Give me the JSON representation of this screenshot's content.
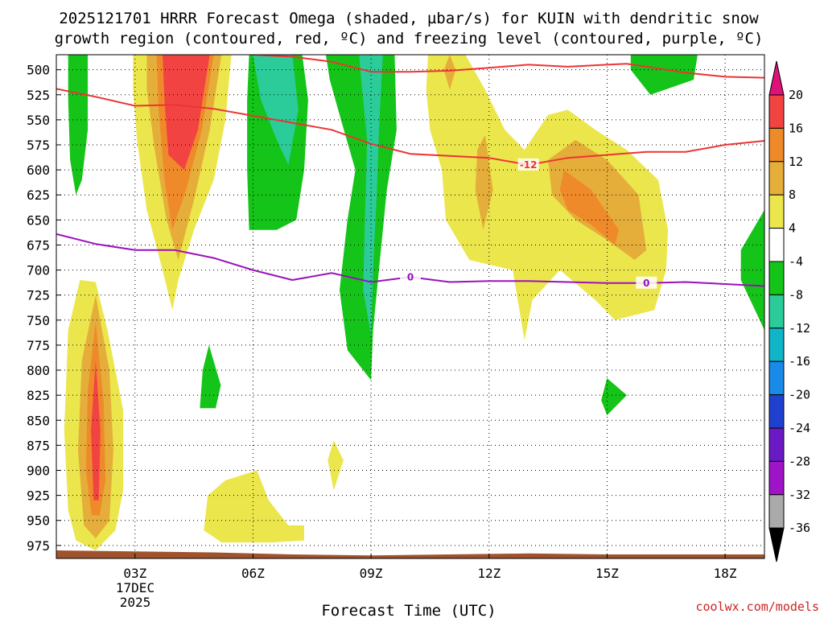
{
  "chart_data": {
    "type": "heatmap",
    "title_line1": "2025121701 HRRR Forecast Omega (shaded, µbar/s) for KUIN with dendritic snow",
    "title_line2": "growth region (contoured, red, ºC) and freezing level (contoured, purple, ºC)",
    "xlabel": "Forecast Time (UTC)",
    "credit": "coolwx.com/models",
    "x_range_hours": [
      1,
      19
    ],
    "x_ticks": [
      {
        "hour": 3,
        "label": "03Z"
      },
      {
        "hour": 6,
        "label": "06Z"
      },
      {
        "hour": 9,
        "label": "09Z"
      },
      {
        "hour": 12,
        "label": "12Z"
      },
      {
        "hour": 15,
        "label": "15Z"
      },
      {
        "hour": 18,
        "label": "18Z"
      }
    ],
    "date_label_line1": "17DEC",
    "date_label_line2": "2025",
    "y_range_mb": [
      485,
      988
    ],
    "y_ticks": [
      "500",
      "525",
      "550",
      "575",
      "600",
      "625",
      "650",
      "675",
      "700",
      "725",
      "750",
      "775",
      "800",
      "825",
      "850",
      "875",
      "900",
      "925",
      "950",
      "975"
    ],
    "grid": "dotted",
    "colorbar": {
      "labels": [
        "20",
        "16",
        "12",
        "8",
        "4",
        "-4",
        "-8",
        "-12",
        "-16",
        "-20",
        "-24",
        "-28",
        "-32",
        "-36"
      ],
      "colors": [
        "#dd1177",
        "#f24343",
        "#ef8a2a",
        "#e5ae3a",
        "#ece64d",
        "#ffffff",
        "#15c418",
        "#2ccc9a",
        "#11b5c8",
        "#1a8ae8",
        "#2040d0",
        "#6a1ac4",
        "#a014c8",
        "#aaaaaa",
        "#000000"
      ]
    },
    "contours": {
      "dgz_color": "#ee3333",
      "dgz_label": "-12",
      "dgz_upper": [
        [
          1,
          519
        ],
        [
          2,
          527
        ],
        [
          3,
          536
        ],
        [
          4,
          535
        ],
        [
          5,
          539
        ],
        [
          6,
          546
        ],
        [
          7,
          553
        ],
        [
          8,
          560
        ],
        [
          9,
          574
        ],
        [
          10,
          584
        ],
        [
          11,
          586
        ],
        [
          12,
          588
        ],
        [
          13,
          595
        ],
        [
          14,
          588
        ],
        [
          15,
          585
        ],
        [
          16,
          582
        ],
        [
          17,
          582
        ],
        [
          18,
          575
        ],
        [
          19,
          571
        ]
      ],
      "dgz_lower": [
        [
          6,
          485
        ],
        [
          7,
          487
        ],
        [
          8,
          492
        ],
        [
          9,
          502
        ],
        [
          10,
          502
        ],
        [
          11,
          501
        ],
        [
          12,
          498
        ],
        [
          13,
          495
        ],
        [
          14,
          497
        ],
        [
          15,
          495
        ],
        [
          15.5,
          494
        ],
        [
          16,
          497
        ],
        [
          17,
          503
        ],
        [
          18,
          507
        ],
        [
          19,
          508
        ]
      ],
      "freezing_color": "#9911bb",
      "freezing_label": "0",
      "freezing": [
        [
          1,
          664
        ],
        [
          2,
          674
        ],
        [
          3,
          680
        ],
        [
          4,
          680
        ],
        [
          5,
          688
        ],
        [
          6,
          700
        ],
        [
          7,
          710
        ],
        [
          8,
          703
        ],
        [
          9,
          712
        ],
        [
          10,
          707
        ],
        [
          11,
          712
        ],
        [
          12,
          711
        ],
        [
          13,
          711
        ],
        [
          14,
          712
        ],
        [
          15,
          713
        ],
        [
          16,
          713
        ],
        [
          17,
          712
        ],
        [
          18,
          714
        ],
        [
          19,
          716
        ]
      ]
    },
    "omega_regions": [
      {
        "value": 4,
        "points": [
          [
            2.0,
            712
          ],
          [
            2.3,
            760
          ],
          [
            2.7,
            840
          ],
          [
            2.7,
            920
          ],
          [
            2.5,
            960
          ],
          [
            2.0,
            980
          ],
          [
            1.5,
            970
          ],
          [
            1.3,
            940
          ],
          [
            1.2,
            860
          ],
          [
            1.3,
            760
          ],
          [
            1.6,
            710
          ]
        ]
      },
      {
        "value": 8,
        "points": [
          [
            2.0,
            725
          ],
          [
            2.35,
            800
          ],
          [
            2.45,
            880
          ],
          [
            2.35,
            950
          ],
          [
            2.0,
            968
          ],
          [
            1.7,
            955
          ],
          [
            1.55,
            880
          ],
          [
            1.65,
            790
          ]
        ]
      },
      {
        "value": 12,
        "points": [
          [
            2.0,
            752
          ],
          [
            2.2,
            830
          ],
          [
            2.25,
            910
          ],
          [
            2.1,
            945
          ],
          [
            1.9,
            945
          ],
          [
            1.75,
            900
          ],
          [
            1.8,
            820
          ]
        ]
      },
      {
        "value": 16,
        "points": [
          [
            2.0,
            790
          ],
          [
            2.12,
            860
          ],
          [
            2.08,
            930
          ],
          [
            1.95,
            930
          ],
          [
            1.88,
            860
          ]
        ]
      },
      {
        "value": -8,
        "points": [
          [
            1.3,
            485
          ],
          [
            1.8,
            485
          ],
          [
            1.8,
            560
          ],
          [
            1.65,
            610
          ],
          [
            1.5,
            625
          ],
          [
            1.35,
            590
          ],
          [
            1.3,
            530
          ]
        ]
      },
      {
        "value": 4,
        "points": [
          [
            2.95,
            485
          ],
          [
            5.45,
            485
          ],
          [
            5.3,
            550
          ],
          [
            5.0,
            610
          ],
          [
            4.5,
            660
          ],
          [
            4.1,
            710
          ],
          [
            3.95,
            740
          ],
          [
            3.7,
            700
          ],
          [
            3.3,
            640
          ],
          [
            3.05,
            570
          ],
          [
            2.95,
            520
          ]
        ]
      },
      {
        "value": 8,
        "points": [
          [
            3.3,
            485
          ],
          [
            5.2,
            485
          ],
          [
            4.9,
            560
          ],
          [
            4.5,
            630
          ],
          [
            4.1,
            690
          ],
          [
            3.8,
            650
          ],
          [
            3.5,
            580
          ],
          [
            3.3,
            520
          ]
        ]
      },
      {
        "value": 12,
        "points": [
          [
            3.55,
            485
          ],
          [
            5.0,
            485
          ],
          [
            4.7,
            560
          ],
          [
            4.3,
            620
          ],
          [
            3.95,
            660
          ],
          [
            3.75,
            610
          ],
          [
            3.6,
            540
          ]
        ]
      },
      {
        "value": 16,
        "points": [
          [
            3.7,
            485
          ],
          [
            4.9,
            485
          ],
          [
            4.6,
            560
          ],
          [
            4.25,
            600
          ],
          [
            3.85,
            585
          ],
          [
            3.75,
            530
          ]
        ]
      },
      {
        "value": -8,
        "points": [
          [
            5.9,
            485
          ],
          [
            7.25,
            485
          ],
          [
            7.4,
            530
          ],
          [
            7.3,
            600
          ],
          [
            7.1,
            650
          ],
          [
            6.6,
            660
          ],
          [
            5.9,
            660
          ],
          [
            5.85,
            600
          ],
          [
            5.85,
            530
          ]
        ]
      },
      {
        "value": -12,
        "points": [
          [
            6.0,
            485
          ],
          [
            7.0,
            485
          ],
          [
            7.15,
            540
          ],
          [
            6.9,
            595
          ],
          [
            6.6,
            570
          ],
          [
            6.2,
            530
          ]
        ]
      },
      {
        "value": -8,
        "points": [
          [
            7.85,
            485
          ],
          [
            9.6,
            485
          ],
          [
            9.65,
            560
          ],
          [
            9.4,
            620
          ],
          [
            9.2,
            700
          ],
          [
            9.05,
            760
          ],
          [
            9.0,
            810
          ],
          [
            8.4,
            780
          ],
          [
            8.2,
            720
          ],
          [
            8.4,
            650
          ],
          [
            8.6,
            600
          ],
          [
            8.2,
            545
          ],
          [
            7.95,
            510
          ]
        ]
      },
      {
        "value": -12,
        "points": [
          [
            8.7,
            485
          ],
          [
            9.3,
            485
          ],
          [
            9.2,
            560
          ],
          [
            9.15,
            620
          ],
          [
            9.05,
            700
          ],
          [
            9.0,
            765
          ],
          [
            8.8,
            720
          ],
          [
            8.85,
            640
          ],
          [
            8.9,
            570
          ],
          [
            8.75,
            510
          ]
        ]
      },
      {
        "value": 4,
        "points": [
          [
            10.45,
            485
          ],
          [
            11.4,
            485
          ],
          [
            11.9,
            520
          ],
          [
            12.4,
            560
          ],
          [
            12.9,
            580
          ],
          [
            13.5,
            545
          ],
          [
            14.0,
            540
          ],
          [
            14.7,
            560
          ],
          [
            15.5,
            580
          ],
          [
            16.3,
            610
          ],
          [
            16.55,
            660
          ],
          [
            16.5,
            700
          ],
          [
            16.2,
            740
          ],
          [
            15.2,
            750
          ],
          [
            14.7,
            730
          ],
          [
            13.8,
            700
          ],
          [
            13.1,
            730
          ],
          [
            12.9,
            770
          ],
          [
            12.6,
            700
          ],
          [
            11.5,
            690
          ],
          [
            10.9,
            650
          ],
          [
            10.8,
            600
          ],
          [
            10.5,
            560
          ],
          [
            10.4,
            520
          ]
        ]
      },
      {
        "value": 8,
        "points": [
          [
            13.5,
            590
          ],
          [
            14.2,
            570
          ],
          [
            15.0,
            590
          ],
          [
            15.8,
            625
          ],
          [
            16.0,
            680
          ],
          [
            15.7,
            690
          ],
          [
            15.0,
            670
          ],
          [
            14.2,
            650
          ],
          [
            13.6,
            625
          ]
        ]
      },
      {
        "value": 8,
        "points": [
          [
            11.9,
            565
          ],
          [
            12.1,
            620
          ],
          [
            11.85,
            660
          ],
          [
            11.65,
            620
          ],
          [
            11.7,
            580
          ]
        ]
      },
      {
        "value": 8,
        "points": [
          [
            11.0,
            485
          ],
          [
            11.15,
            500
          ],
          [
            11.0,
            520
          ],
          [
            10.85,
            500
          ]
        ]
      },
      {
        "value": 12,
        "points": [
          [
            13.9,
            600
          ],
          [
            14.6,
            620
          ],
          [
            15.3,
            660
          ],
          [
            15.2,
            675
          ],
          [
            14.6,
            655
          ],
          [
            14.0,
            640
          ],
          [
            13.8,
            620
          ]
        ]
      },
      {
        "value": -8,
        "points": [
          [
            15.6,
            485
          ],
          [
            17.3,
            485
          ],
          [
            17.2,
            510
          ],
          [
            16.1,
            525
          ],
          [
            15.6,
            500
          ]
        ]
      },
      {
        "value": -8,
        "points": [
          [
            19.0,
            640
          ],
          [
            19.0,
            760
          ],
          [
            18.4,
            710
          ],
          [
            18.4,
            680
          ]
        ]
      },
      {
        "value": -8,
        "points": [
          [
            4.88,
            775
          ],
          [
            5.18,
            815
          ],
          [
            5.05,
            838
          ],
          [
            4.65,
            838
          ],
          [
            4.72,
            800
          ]
        ]
      },
      {
        "value": -8,
        "points": [
          [
            15.0,
            808
          ],
          [
            15.5,
            825
          ],
          [
            15.0,
            845
          ],
          [
            14.85,
            830
          ]
        ]
      },
      {
        "value": 4,
        "points": [
          [
            8.05,
            870
          ],
          [
            8.3,
            890
          ],
          [
            8.05,
            920
          ],
          [
            7.9,
            890
          ]
        ]
      },
      {
        "value": 4,
        "points": [
          [
            6.1,
            900
          ],
          [
            6.4,
            930
          ],
          [
            6.9,
            955
          ],
          [
            7.3,
            955
          ],
          [
            7.3,
            970
          ],
          [
            6.5,
            972
          ],
          [
            5.2,
            972
          ],
          [
            4.75,
            960
          ],
          [
            4.85,
            925
          ],
          [
            5.3,
            910
          ]
        ]
      }
    ]
  }
}
